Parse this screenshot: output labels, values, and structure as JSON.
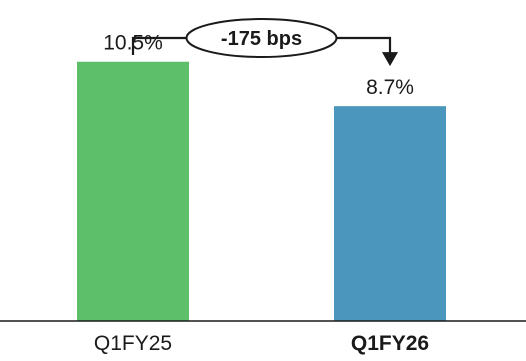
{
  "chart_data": {
    "type": "bar",
    "categories": [
      "Q1FY25",
      "Q1FY26"
    ],
    "values": [
      10.5,
      8.7
    ],
    "data_labels": [
      "10.5%",
      "8.7%"
    ],
    "bar_colors": [
      "#5dbf6a",
      "#4b96bc"
    ],
    "bold_categories": [
      false,
      true
    ],
    "ylim": [
      0,
      13
    ],
    "grid": false,
    "annotation": {
      "text": "-175 bps",
      "from_category": "Q1FY25",
      "to_category": "Q1FY26"
    }
  },
  "colors": {
    "axis": "#1a1a1a",
    "text": "#1a1a1a"
  }
}
